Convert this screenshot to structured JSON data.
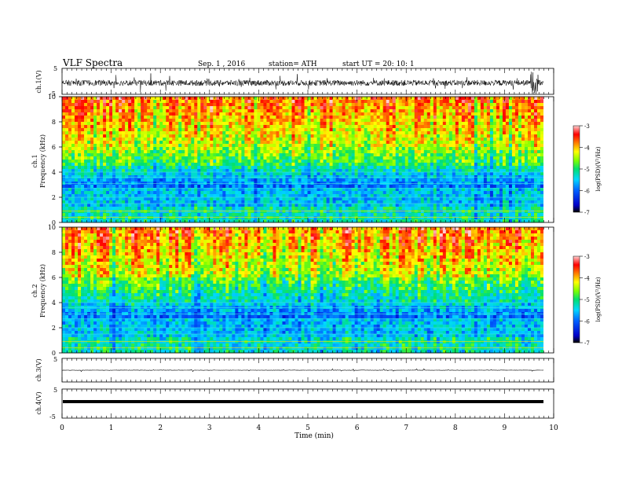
{
  "header": {
    "title": "VLF  Spectra",
    "date": "Sep. 1  , 2016",
    "station": "station= ATH",
    "start": "start  UT  =    20: 10: 1"
  },
  "chart_data": [
    {
      "type": "line",
      "ylabel": "ch.1(V)",
      "ylim": [
        -5,
        5
      ],
      "yticks": [
        "5",
        "-5"
      ],
      "description_trace": "noisy waveform around -0.5 V with spikes"
    },
    {
      "type": "heatmap",
      "ylabel_channel": "ch.1",
      "ylabel": "Frequency  (kHz)",
      "ylim": [
        0,
        10
      ],
      "yticks": [
        "0",
        "2",
        "4",
        "6",
        "8",
        "10"
      ],
      "colorbar": {
        "label": "log(PSD)(V²/Hz)",
        "ticks": [
          "-3",
          "-4",
          "-5",
          "-6",
          "-7"
        ],
        "range": [
          -7,
          -3
        ]
      }
    },
    {
      "type": "heatmap",
      "ylabel_channel": "ch.2",
      "ylabel": "Frequency  (kHz)",
      "ylim": [
        0,
        10
      ],
      "yticks": [
        "0",
        "2",
        "4",
        "6",
        "8",
        "10"
      ],
      "colorbar": {
        "label": "log(PSD)(V²/Hz)",
        "ticks": [
          "-3",
          "-4",
          "-5",
          "-6",
          "-7"
        ],
        "range": [
          -7,
          -3
        ]
      }
    },
    {
      "type": "line",
      "ylabel": "ch.3(V)",
      "ylim": [
        -5,
        5
      ],
      "yticks": [
        "5",
        "-5"
      ]
    },
    {
      "type": "line",
      "ylabel": "ch.4(V)",
      "ylim": [
        -5,
        5
      ],
      "yticks": [
        "5",
        "-5"
      ]
    }
  ],
  "xaxis": {
    "label": "Time  (min)",
    "ticks": [
      "0",
      "1",
      "2",
      "3",
      "4",
      "5",
      "6",
      "7",
      "8",
      "9",
      "10"
    ],
    "xlim": [
      0,
      10
    ]
  }
}
